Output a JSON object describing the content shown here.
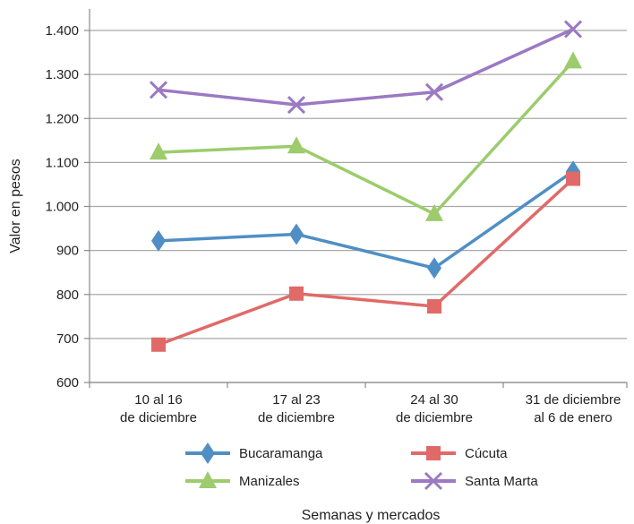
{
  "chart_data": {
    "type": "line",
    "categories": [
      [
        "10 al 16",
        "de diciembre"
      ],
      [
        "17 al 23",
        "de diciembre"
      ],
      [
        "24 al 30",
        "de diciembre"
      ],
      [
        "31 de diciembre",
        "al 6 de enero"
      ]
    ],
    "series": [
      {
        "name": "Bucaramanga",
        "values": [
          922,
          937,
          860,
          1080
        ],
        "color": "#4f8fc5",
        "marker": "diamond"
      },
      {
        "name": "Cúcuta",
        "values": [
          686,
          802,
          773,
          1063
        ],
        "color": "#e06a68",
        "marker": "square"
      },
      {
        "name": "Manizales",
        "values": [
          1123,
          1137,
          983,
          1330
        ],
        "color": "#9ccc6c",
        "marker": "triangle"
      },
      {
        "name": "Santa Marta",
        "values": [
          1265,
          1231,
          1260,
          1403
        ],
        "color": "#9b79c3",
        "marker": "x"
      }
    ],
    "ylabel": "Valor en pesos",
    "xlabel": "Semanas y mercados",
    "ylim": [
      600,
      1400
    ],
    "yticks": [
      "600",
      "700",
      "800",
      "900",
      "1.000",
      "1.100",
      "1.200",
      "1.300",
      "1.400"
    ],
    "grid": true,
    "legend": "bottom"
  }
}
